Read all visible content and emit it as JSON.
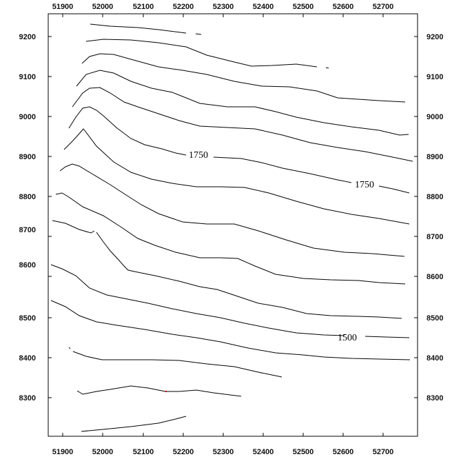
{
  "map": {
    "x_ticks": [
      "51900",
      "52000",
      "52100",
      "52200",
      "52300",
      "52400",
      "52500",
      "52600",
      "52700"
    ],
    "y_ticks": [
      "9200",
      "9100",
      "9000",
      "8900",
      "8800",
      "8700",
      "8600",
      "8500",
      "8400",
      "8300"
    ],
    "contour_labels": [
      {
        "text": "1750"
      },
      {
        "text": "1750"
      },
      {
        "text": "1500"
      }
    ],
    "line_color": "#000000",
    "background": "#ffffff"
  }
}
